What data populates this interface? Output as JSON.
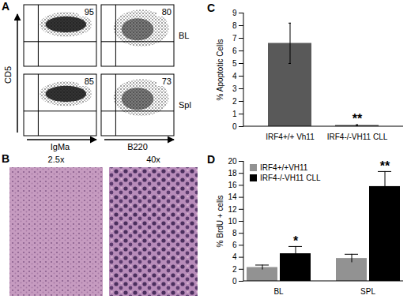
{
  "panels": {
    "A": {
      "label": "A",
      "y_label": "CD5",
      "columns": [
        "IgMa",
        "B220"
      ],
      "rows": [
        "BL",
        "Spl"
      ],
      "percentages": [
        [
          95,
          80
        ],
        [
          85,
          73
        ]
      ]
    },
    "B": {
      "label": "B",
      "images": [
        "2.5x",
        "40x"
      ]
    }
  },
  "chart_data": [
    {
      "panel": "C",
      "type": "bar",
      "y_label": "% Apoptotic Cells",
      "categories": [
        "IRF4+/+ Vh11",
        "IRF4-/-VH11 CLL"
      ],
      "values": [
        6.6,
        0.1
      ],
      "errors": [
        1.6,
        0.05
      ],
      "color": "#595959",
      "ylim": [
        0,
        9
      ],
      "yticks": [
        0,
        1,
        2,
        3,
        4,
        5,
        6,
        7,
        8,
        9
      ],
      "grid": false,
      "annotations": [
        {
          "category": "IRF4-/-VH11 CLL",
          "text": "**"
        }
      ]
    },
    {
      "panel": "D",
      "type": "bar",
      "y_label": "% BrdU + cells",
      "categories": [
        "BL",
        "SPL"
      ],
      "series": [
        {
          "name": "IRF4+/+VH11",
          "color": "#929292",
          "values": [
            2.3,
            3.8
          ],
          "errors": [
            0.4,
            0.7
          ]
        },
        {
          "name": "IRF4-/-VH11 CLL",
          "color": "#000000",
          "values": [
            4.6,
            15.8
          ],
          "errors": [
            1.2,
            2.5
          ]
        }
      ],
      "ylim": [
        0,
        20
      ],
      "yticks": [
        0,
        2,
        4,
        6,
        8,
        10,
        12,
        14,
        16,
        18,
        20
      ],
      "grid": false,
      "legend": "top-left",
      "annotations": [
        {
          "category": "BL",
          "series": "IRF4-/-VH11 CLL",
          "text": "*"
        },
        {
          "category": "SPL",
          "series": "IRF4-/-VH11 CLL",
          "text": "**"
        }
      ]
    }
  ]
}
